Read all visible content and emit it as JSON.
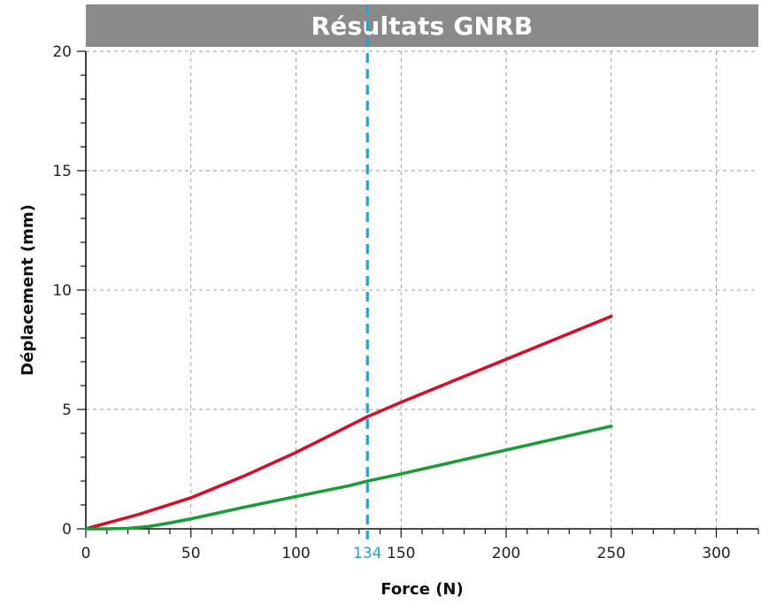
{
  "chart_data": {
    "type": "line",
    "title": "Résultats GNRB",
    "xlabel": "Force (N)",
    "ylabel": "Déplacement (mm)",
    "xlim": [
      0,
      320
    ],
    "ylim": [
      0,
      20
    ],
    "x_ticks": [
      0,
      50,
      100,
      150,
      200,
      250,
      300
    ],
    "y_ticks": [
      0,
      5,
      10,
      15,
      20
    ],
    "grid": true,
    "reference_line": {
      "x": 134,
      "label": "134",
      "color": "#2a9fd6"
    },
    "series": [
      {
        "color": "#d0112b",
        "x": [
          0,
          25,
          50,
          75,
          100,
          125,
          134,
          150,
          175,
          200,
          225,
          250
        ],
        "y": [
          0,
          0.6,
          1.3,
          2.2,
          3.2,
          4.3,
          4.7,
          5.3,
          6.2,
          7.1,
          8.0,
          8.9
        ]
      },
      {
        "color": "#1e9a3a",
        "x": [
          0,
          10,
          20,
          30,
          40,
          50,
          75,
          100,
          125,
          134,
          150,
          175,
          200,
          225,
          250
        ],
        "y": [
          0,
          0,
          0.02,
          0.1,
          0.25,
          0.42,
          0.9,
          1.35,
          1.8,
          2.0,
          2.3,
          2.8,
          3.3,
          3.8,
          4.3
        ]
      }
    ]
  }
}
